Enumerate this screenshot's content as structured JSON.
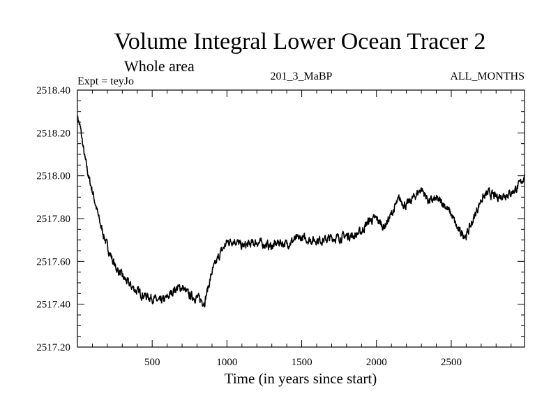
{
  "chart_data": {
    "type": "line",
    "title": "Volume Integral Lower Ocean Tracer 2",
    "subtitle": "Whole area",
    "info_left": "Expt = teyJo",
    "info_center": "201_3_MaBP",
    "info_right": "ALL_MONTHS",
    "xlabel": "Time (in years since start)",
    "ylabel": "",
    "xlim": [
      0,
      2990
    ],
    "ylim": [
      2517.2,
      2518.4
    ],
    "xticks": [
      500,
      1000,
      1500,
      2000,
      2500
    ],
    "xtick_labels": [
      "500",
      "1000",
      "1500",
      "2000",
      "2500"
    ],
    "yticks": [
      2517.2,
      2517.4,
      2517.6,
      2517.8,
      2518.0,
      2518.2,
      2518.4
    ],
    "ytick_labels": [
      "2517.20",
      "2517.40",
      "2517.60",
      "2517.80",
      "2518.00",
      "2518.20",
      "2518.40"
    ],
    "series": [
      {
        "name": "Volume Integral Lower Ocean Tracer 2",
        "color": "#000000",
        "x": [
          0,
          20,
          50,
          80,
          100,
          150,
          200,
          250,
          300,
          350,
          400,
          450,
          500,
          550,
          600,
          650,
          700,
          750,
          800,
          850,
          900,
          950,
          1000,
          1050,
          1100,
          1150,
          1200,
          1250,
          1300,
          1350,
          1400,
          1450,
          1500,
          1550,
          1600,
          1650,
          1700,
          1750,
          1800,
          1850,
          1900,
          1950,
          2000,
          2050,
          2100,
          2150,
          2200,
          2250,
          2300,
          2350,
          2400,
          2450,
          2500,
          2550,
          2600,
          2650,
          2700,
          2750,
          2800,
          2850,
          2900,
          2950,
          2990
        ],
        "values": [
          2518.28,
          2518.22,
          2518.08,
          2517.98,
          2517.93,
          2517.78,
          2517.67,
          2517.58,
          2517.53,
          2517.49,
          2517.46,
          2517.44,
          2517.43,
          2517.41,
          2517.43,
          2517.47,
          2517.48,
          2517.44,
          2517.43,
          2517.41,
          2517.55,
          2517.63,
          2517.69,
          2517.7,
          2517.67,
          2517.68,
          2517.69,
          2517.68,
          2517.67,
          2517.69,
          2517.68,
          2517.7,
          2517.71,
          2517.7,
          2517.7,
          2517.7,
          2517.71,
          2517.71,
          2517.72,
          2517.72,
          2517.74,
          2517.79,
          2517.8,
          2517.76,
          2517.82,
          2517.89,
          2517.86,
          2517.9,
          2517.94,
          2517.88,
          2517.89,
          2517.87,
          2517.82,
          2517.74,
          2517.72,
          2517.8,
          2517.89,
          2517.92,
          2517.9,
          2517.91,
          2517.92,
          2517.95,
          2518.0
        ],
        "noise_amplitude": 0.035
      }
    ]
  }
}
